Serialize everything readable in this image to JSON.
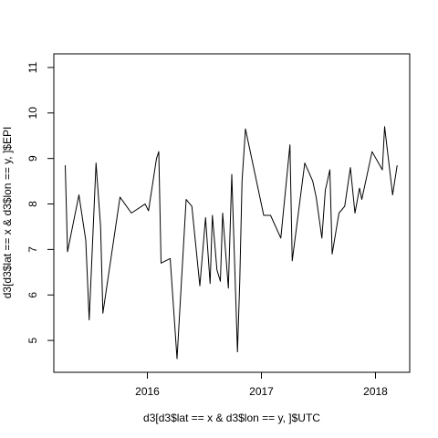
{
  "chart_data": {
    "type": "line",
    "title": "",
    "xlabel": "d3[d3$lat == x & d3$lon == y, ]$UTC",
    "ylabel": "d3[d3$lat == x & d3$lon == y, ]$EPI",
    "xlim": [
      2015.18,
      2018.3
    ],
    "ylim": [
      4.3,
      11.3
    ],
    "x_ticks": [
      {
        "value": 2016.0,
        "label": "2016"
      },
      {
        "value": 2017.0,
        "label": "2017"
      },
      {
        "value": 2018.0,
        "label": "2018"
      }
    ],
    "y_ticks": [
      {
        "value": 5,
        "label": "5"
      },
      {
        "value": 6,
        "label": "6"
      },
      {
        "value": 7,
        "label": "7"
      },
      {
        "value": 8,
        "label": "8"
      },
      {
        "value": 9,
        "label": "9"
      },
      {
        "value": 10,
        "label": "10"
      },
      {
        "value": 11,
        "label": "11"
      }
    ],
    "series": [
      {
        "name": "EPI",
        "color": "#000000",
        "x": [
          2015.28,
          2015.3,
          2015.4,
          2015.46,
          2015.49,
          2015.55,
          2015.59,
          2015.61,
          2015.76,
          2015.86,
          2015.98,
          2016.01,
          2016.08,
          2016.1,
          2016.12,
          2016.2,
          2016.26,
          2016.34,
          2016.39,
          2016.46,
          2016.51,
          2016.55,
          2016.57,
          2016.61,
          2016.64,
          2016.66,
          2016.71,
          2016.74,
          2016.79,
          2016.81,
          2016.83,
          2016.86,
          2017.02,
          2017.08,
          2017.17,
          2017.25,
          2017.27,
          2017.38,
          2017.45,
          2017.48,
          2017.53,
          2017.56,
          2017.6,
          2017.62,
          2017.68,
          2017.73,
          2017.78,
          2017.8,
          2017.82,
          2017.86,
          2017.88,
          2017.97,
          2018.06,
          2018.08,
          2018.15,
          2018.19
        ],
        "y": [
          8.85,
          6.95,
          8.2,
          7.2,
          5.45,
          8.9,
          7.5,
          5.6,
          8.15,
          7.8,
          8.0,
          7.85,
          9.0,
          9.15,
          6.7,
          6.8,
          4.6,
          8.1,
          7.95,
          6.2,
          7.7,
          6.25,
          7.75,
          6.55,
          6.3,
          7.8,
          6.15,
          8.65,
          4.75,
          6.3,
          8.5,
          9.65,
          7.75,
          7.75,
          7.25,
          9.3,
          6.75,
          8.9,
          8.5,
          8.15,
          7.25,
          8.3,
          8.75,
          6.9,
          7.8,
          7.95,
          8.8,
          8.3,
          7.8,
          8.35,
          8.1,
          9.15,
          8.75,
          9.7,
          8.2,
          8.85
        ]
      }
    ]
  }
}
